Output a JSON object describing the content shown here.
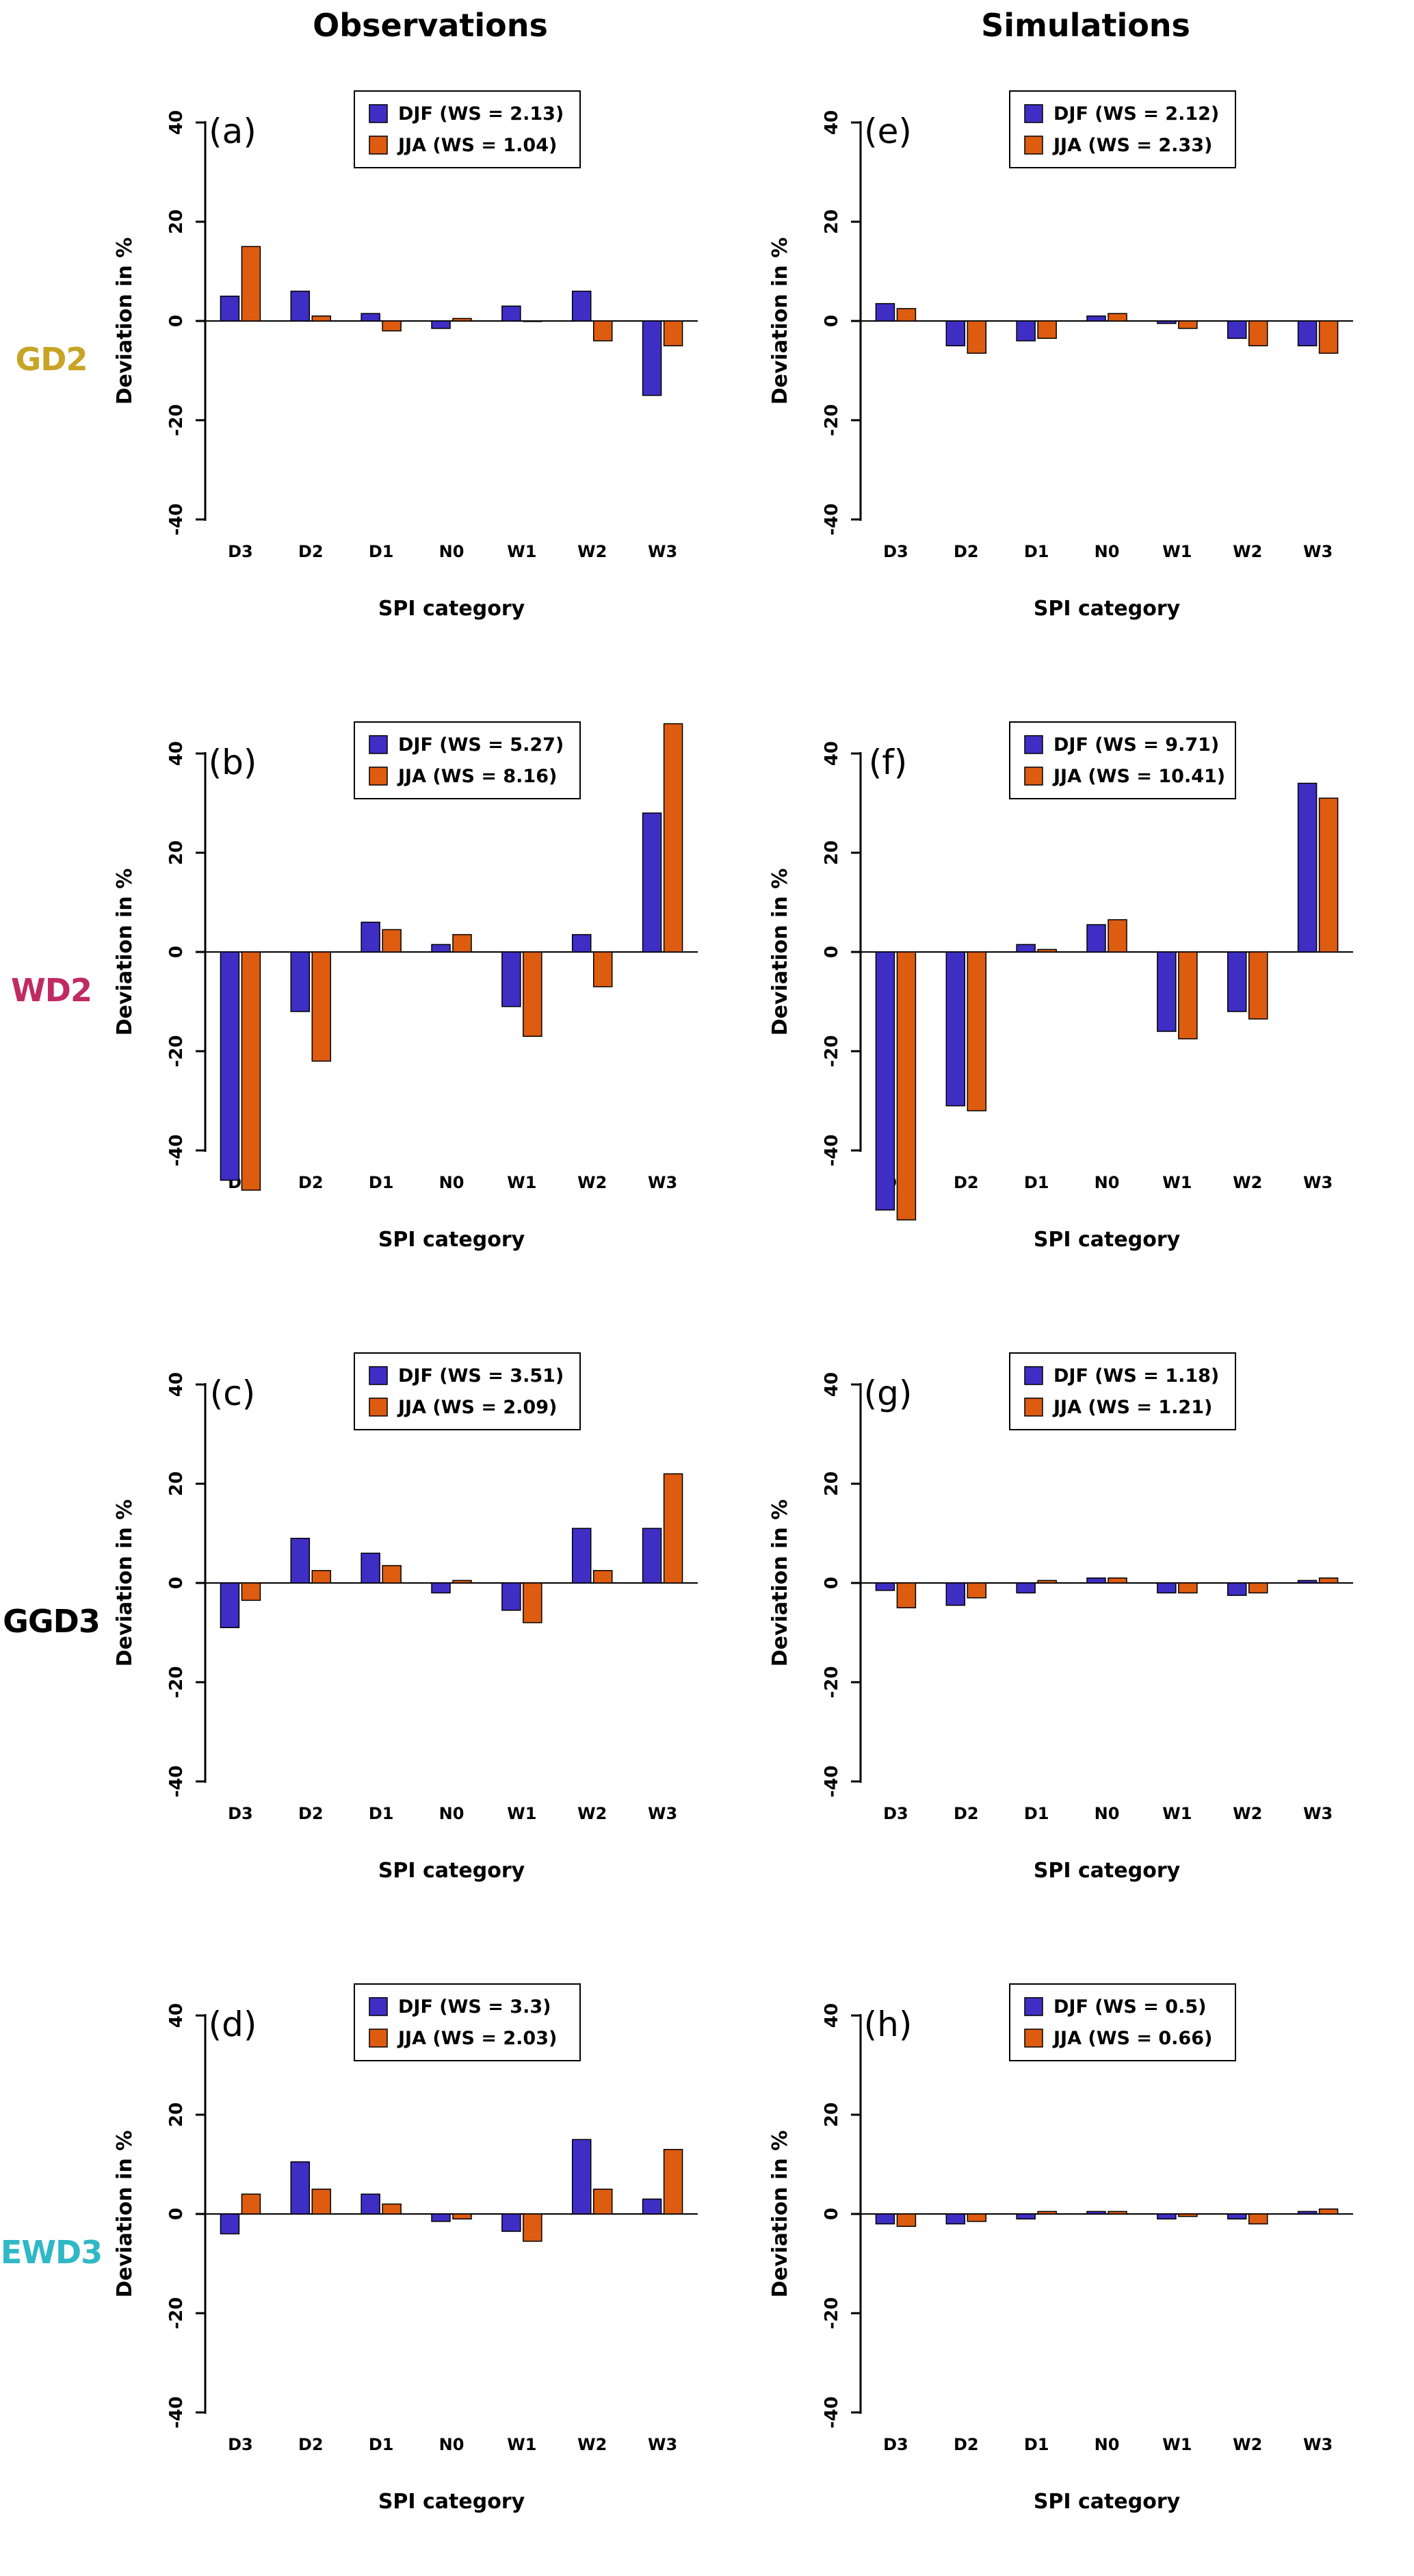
{
  "figure": {
    "column_titles": [
      "Observations",
      "Simulations"
    ],
    "row_labels": [
      {
        "text": "GD2",
        "color": "#C7A426"
      },
      {
        "text": "WD2",
        "color": "#C02A63"
      },
      {
        "text": "GGD3",
        "color": "#000000"
      },
      {
        "text": "EWD3",
        "color": "#2FB8C6"
      }
    ],
    "ylabel": "Deviation in %",
    "xlabel": "SPI category",
    "yticks": [
      -40,
      -20,
      0,
      20,
      40
    ],
    "ylim": [
      -40,
      40
    ],
    "colors": {
      "djf": "#3F2EC4",
      "jja": "#DD5C10"
    }
  },
  "chart_data": [
    {
      "panel": "(a)",
      "row": "GD2",
      "column": "Observations",
      "type": "bar",
      "categories": [
        "D3",
        "D2",
        "D1",
        "N0",
        "W1",
        "W2",
        "W3"
      ],
      "series": [
        {
          "name": "DJF (WS = 2.13)",
          "color_key": "djf",
          "values": [
            5,
            6,
            1.5,
            -1.5,
            3,
            6,
            -15
          ]
        },
        {
          "name": "JJA (WS = 1.04)",
          "color_key": "jja",
          "values": [
            15,
            1,
            -2,
            0.5,
            0,
            -4,
            -5
          ]
        }
      ],
      "xlabel": "SPI category",
      "ylabel": "Deviation in %",
      "ylim": [
        -40,
        40
      ]
    },
    {
      "panel": "(e)",
      "row": "GD2",
      "column": "Simulations",
      "type": "bar",
      "categories": [
        "D3",
        "D2",
        "D1",
        "N0",
        "W1",
        "W2",
        "W3"
      ],
      "series": [
        {
          "name": "DJF (WS = 2.12)",
          "color_key": "djf",
          "values": [
            3.5,
            -5,
            -4,
            1,
            -0.5,
            -3.5,
            -5
          ]
        },
        {
          "name": "JJA (WS = 2.33)",
          "color_key": "jja",
          "values": [
            2.5,
            -6.5,
            -3.5,
            1.5,
            -1.5,
            -5,
            -6.5
          ]
        }
      ],
      "xlabel": "SPI category",
      "ylabel": "Deviation in %",
      "ylim": [
        -40,
        40
      ]
    },
    {
      "panel": "(b)",
      "row": "WD2",
      "column": "Observations",
      "type": "bar",
      "categories": [
        "D3",
        "D2",
        "D1",
        "N0",
        "W1",
        "W2",
        "W3"
      ],
      "series": [
        {
          "name": "DJF (WS = 5.27)",
          "color_key": "djf",
          "values": [
            -46,
            -12,
            6,
            1.5,
            -11,
            3.5,
            28
          ]
        },
        {
          "name": "JJA (WS = 8.16)",
          "color_key": "jja",
          "values": [
            -48,
            -22,
            4.5,
            3.5,
            -17,
            -7,
            46
          ]
        }
      ],
      "xlabel": "SPI category",
      "ylabel": "Deviation in %",
      "ylim": [
        -40,
        40
      ]
    },
    {
      "panel": "(f)",
      "row": "WD2",
      "column": "Simulations",
      "type": "bar",
      "categories": [
        "D3",
        "D2",
        "D1",
        "N0",
        "W1",
        "W2",
        "W3"
      ],
      "series": [
        {
          "name": "DJF (WS = 9.71)",
          "color_key": "djf",
          "values": [
            -52,
            -31,
            1.5,
            5.5,
            -16,
            -12,
            34
          ]
        },
        {
          "name": "JJA (WS = 10.41)",
          "color_key": "jja",
          "values": [
            -54,
            -32,
            0.5,
            6.5,
            -17.5,
            -13.5,
            31
          ]
        }
      ],
      "xlabel": "SPI category",
      "ylabel": "Deviation in %",
      "ylim": [
        -40,
        40
      ]
    },
    {
      "panel": "(c)",
      "row": "GGD3",
      "column": "Observations",
      "type": "bar",
      "categories": [
        "D3",
        "D2",
        "D1",
        "N0",
        "W1",
        "W2",
        "W3"
      ],
      "series": [
        {
          "name": "DJF (WS = 3.51)",
          "color_key": "djf",
          "values": [
            -9,
            9,
            6,
            -2,
            -5.5,
            11,
            11
          ]
        },
        {
          "name": "JJA (WS = 2.09)",
          "color_key": "jja",
          "values": [
            -3.5,
            2.5,
            3.5,
            0.5,
            -8,
            2.5,
            22
          ]
        }
      ],
      "xlabel": "SPI category",
      "ylabel": "Deviation in %",
      "ylim": [
        -40,
        40
      ]
    },
    {
      "panel": "(g)",
      "row": "GGD3",
      "column": "Simulations",
      "type": "bar",
      "categories": [
        "D3",
        "D2",
        "D1",
        "N0",
        "W1",
        "W2",
        "W3"
      ],
      "series": [
        {
          "name": "DJF (WS = 1.18)",
          "color_key": "djf",
          "values": [
            -1.5,
            -4.5,
            -2,
            1,
            -2,
            -2.5,
            0.5
          ]
        },
        {
          "name": "JJA (WS = 1.21)",
          "color_key": "jja",
          "values": [
            -5,
            -3,
            0.5,
            1,
            -2,
            -2,
            1
          ]
        }
      ],
      "xlabel": "SPI category",
      "ylabel": "Deviation in %",
      "ylim": [
        -40,
        40
      ]
    },
    {
      "panel": "(d)",
      "row": "EWD3",
      "column": "Observations",
      "type": "bar",
      "categories": [
        "D3",
        "D2",
        "D1",
        "N0",
        "W1",
        "W2",
        "W3"
      ],
      "series": [
        {
          "name": "DJF (WS = 3.3)",
          "color_key": "djf",
          "values": [
            -4,
            10.5,
            4,
            -1.5,
            -3.5,
            15,
            3
          ]
        },
        {
          "name": "JJA (WS = 2.03)",
          "color_key": "jja",
          "values": [
            4,
            5,
            2,
            -1,
            -5.5,
            5,
            13
          ]
        }
      ],
      "xlabel": "SPI category",
      "ylabel": "Deviation in %",
      "ylim": [
        -40,
        40
      ]
    },
    {
      "panel": "(h)",
      "row": "EWD3",
      "column": "Simulations",
      "type": "bar",
      "categories": [
        "D3",
        "D2",
        "D1",
        "N0",
        "W1",
        "W2",
        "W3"
      ],
      "series": [
        {
          "name": "DJF (WS = 0.5)",
          "color_key": "djf",
          "values": [
            -2,
            -2,
            -1,
            0.5,
            -1,
            -1,
            0.5
          ]
        },
        {
          "name": "JJA (WS = 0.66)",
          "color_key": "jja",
          "values": [
            -2.5,
            -1.5,
            0.5,
            0.5,
            -0.5,
            -2,
            1
          ]
        }
      ],
      "xlabel": "SPI category",
      "ylabel": "Deviation in %",
      "ylim": [
        -40,
        40
      ]
    }
  ]
}
